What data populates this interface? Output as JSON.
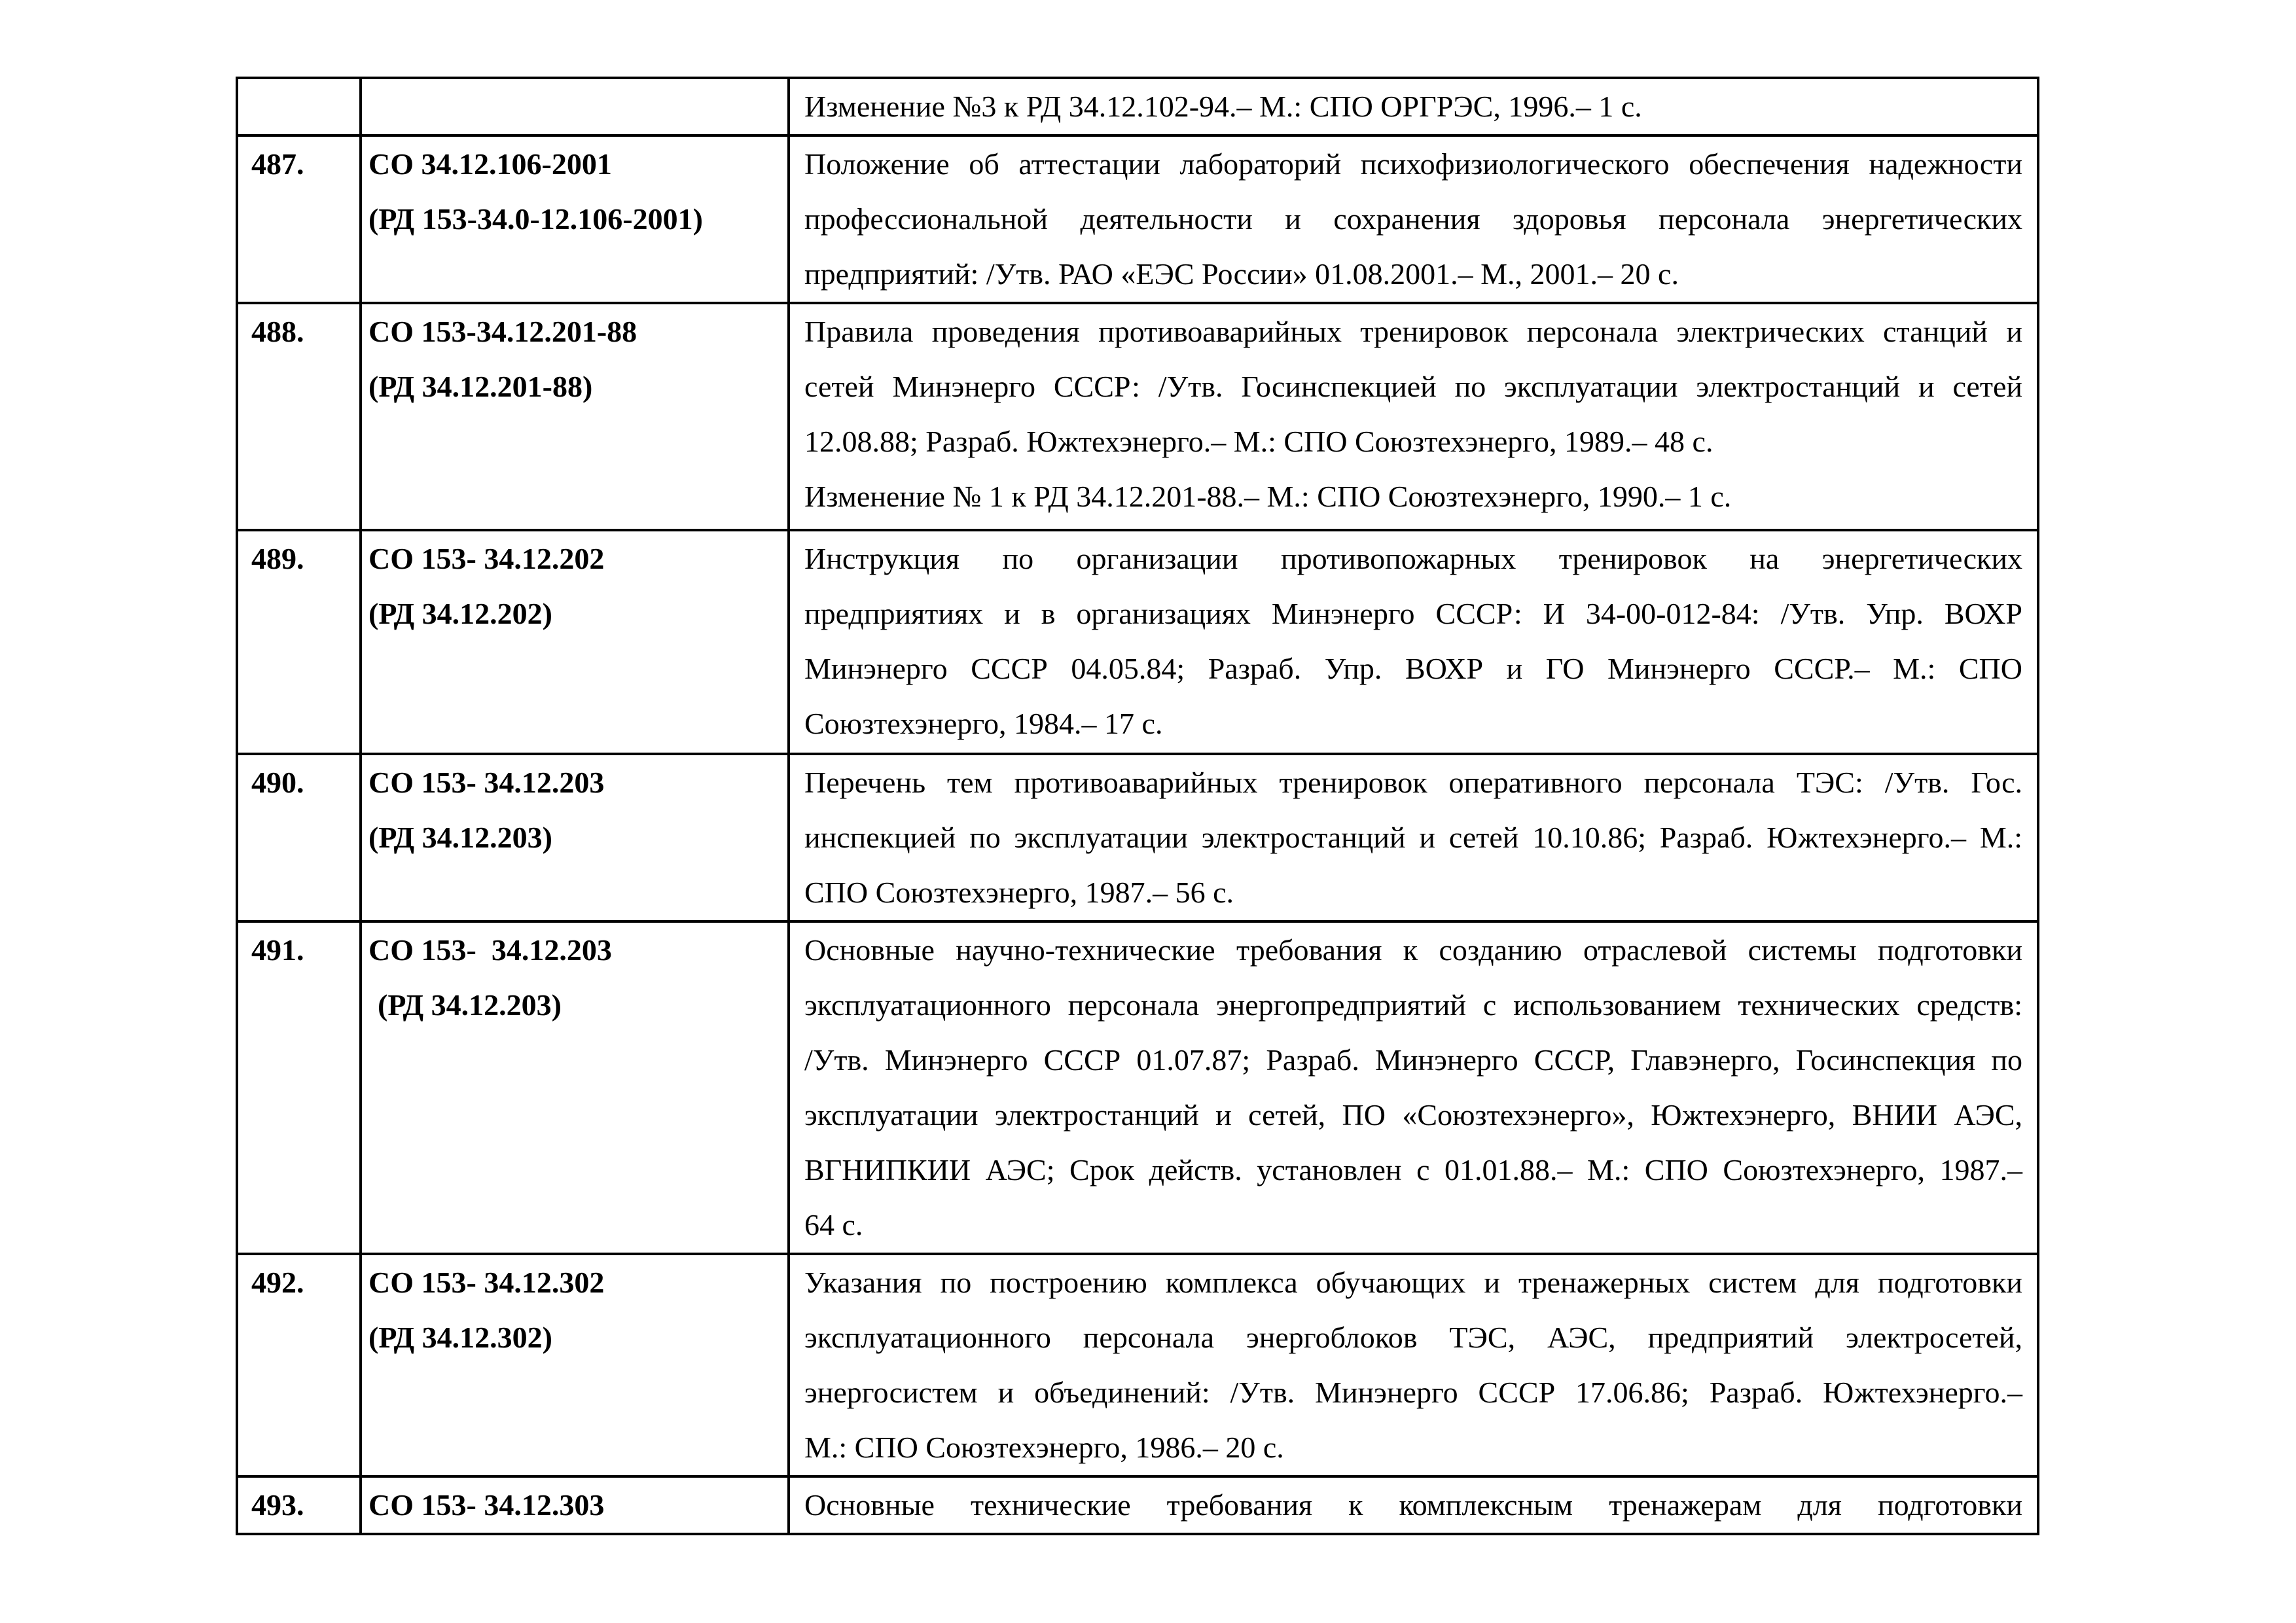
{
  "rows": [
    {
      "num": "",
      "code": [],
      "desc": [
        "Изменение №3 к РД 34.12.102-94.– М.: СПО ОРГРЭС, 1996.– 1 с."
      ]
    },
    {
      "num": "487.",
      "code": [
        "СО 34.12.106-2001",
        "(РД 153-34.0-12.106-2001)"
      ],
      "desc": [
        "Положение об аттестации лабораторий психофизиологического обеспечения надежности",
        "профессиональной деятельности и сохранения здоровья персонала энергетических",
        "предприятий: /Утв. РАО «ЕЭС России» 01.08.2001.– М., 2001.– 20 с."
      ]
    },
    {
      "num": "488.",
      "code": [
        "СО 153-34.12.201-88",
        "(РД 34.12.201-88)"
      ],
      "desc": [
        "Правила проведения противоаварийных тренировок персонала электрических станций и",
        "сетей Минэнерго СССР: /Утв. Госинспекцией по эксплуатации электростанций и сетей",
        "12.08.88; Разраб. Южтехэнерго.– М.: СПО Союзтехэнерго, 1989.– 48 с.",
        "Изменение № 1 к РД 34.12.201-88.– М.: СПО Союзтехэнерго, 1990.– 1 с."
      ]
    },
    {
      "num": "489.",
      "code": [
        "СО 153- 34.12.202",
        "(РД 34.12.202)"
      ],
      "desc": [
        "Инструкция по организации противопожарных тренировок на энергетических",
        "предприятиях и в организациях Минэнерго СССР: И 34-00-012-84: /Утв. Упр. ВОХР",
        "Минэнерго СССР 04.05.84; Разраб. Упр. ВОХР и ГО Минэнерго СССР.– М.: СПО",
        "Союзтехэнерго, 1984.– 17 с."
      ]
    },
    {
      "num": "490.",
      "code": [
        "СО 153- 34.12.203",
        "(РД 34.12.203)"
      ],
      "desc": [
        "Перечень тем противоаварийных тренировок оперативного персонала ТЭС: /Утв. Гос.",
        "инспекцией по эксплуатации электростанций и сетей 10.10.86; Разраб. Южтехэнерго.– М.:",
        "СПО Союзтехэнерго, 1987.– 56 с."
      ]
    },
    {
      "num": "491.",
      "code": [
        "СО 153-  34.12.203",
        "(РД 34.12.203)"
      ],
      "desc": [
        "Основные научно-технические требования к созданию отраслевой системы подготовки",
        "эксплуатационного персонала энергопредприятий с использованием технических средств:",
        "/Утв. Минэнерго СССР 01.07.87; Разраб. Минэнерго СССР, Главэнерго, Госинспекция по",
        "эксплуатации электростанций и сетей, ПО «Союзтехэнерго», Южтехэнерго, ВНИИ АЭС,",
        "ВГНИПКИИ АЭС; Срок действ. установлен с 01.01.88.– М.: СПО Союзтехэнерго, 1987.–",
        "64 с."
      ]
    },
    {
      "num": "492.",
      "code": [
        "СО 153- 34.12.302",
        "(РД 34.12.302)"
      ],
      "desc": [
        "Указания по построению комплекса обучающих и тренажерных систем для подготовки",
        "эксплуатационного персонала энергоблоков ТЭС, АЭС, предприятий электросетей,",
        "энергосистем и объединений: /Утв. Минэнерго СССР 17.06.86; Разраб. Южтехэнерго.–",
        "М.: СПО Союзтехэнерго, 1986.– 20 с."
      ]
    },
    {
      "num": "493.",
      "code": [
        "СО 153- 34.12.303"
      ],
      "desc": [
        "Основные технические требования к комплексным тренажерам для подготовки"
      ]
    }
  ]
}
